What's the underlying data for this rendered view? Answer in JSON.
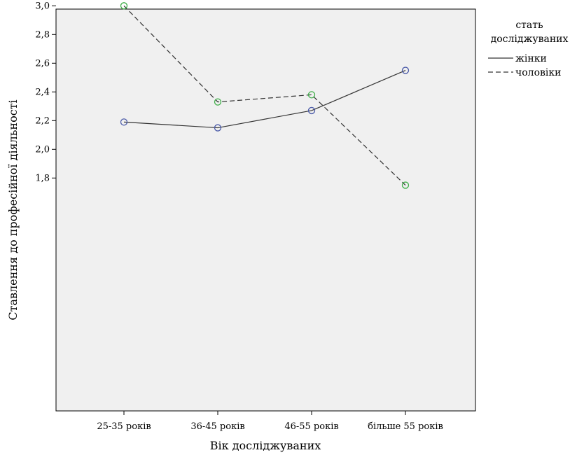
{
  "chart_data": {
    "type": "line",
    "xlabel": "Вік досліджуваних",
    "ylabel": "Ставлення до професійної діяльності",
    "categories": [
      "25-35 років",
      "36-45 років",
      "46-55 років",
      "більше 55 років"
    ],
    "ylim": [
      1.7,
      3.07
    ],
    "yticks": [
      "1,8",
      "2,0",
      "2,2",
      "2,4",
      "2,6",
      "2,8",
      "3,0"
    ],
    "ytick_values": [
      1.8,
      2.0,
      2.2,
      2.4,
      2.6,
      2.8,
      3.0
    ],
    "grid": false,
    "legend": {
      "title_line1": "стать",
      "title_line2": "досліджуваних",
      "placement": "right"
    },
    "series": [
      {
        "name": "жінки",
        "values": [
          2.19,
          2.15,
          2.27,
          2.55
        ],
        "line_style": "solid",
        "marker_color": "#4a5aa8"
      },
      {
        "name": "чоловіки",
        "values": [
          3.0,
          2.33,
          2.38,
          1.75
        ],
        "line_style": "dashed",
        "marker_color": "#3fae49"
      }
    ],
    "plot_background": "#f0f0f0"
  }
}
